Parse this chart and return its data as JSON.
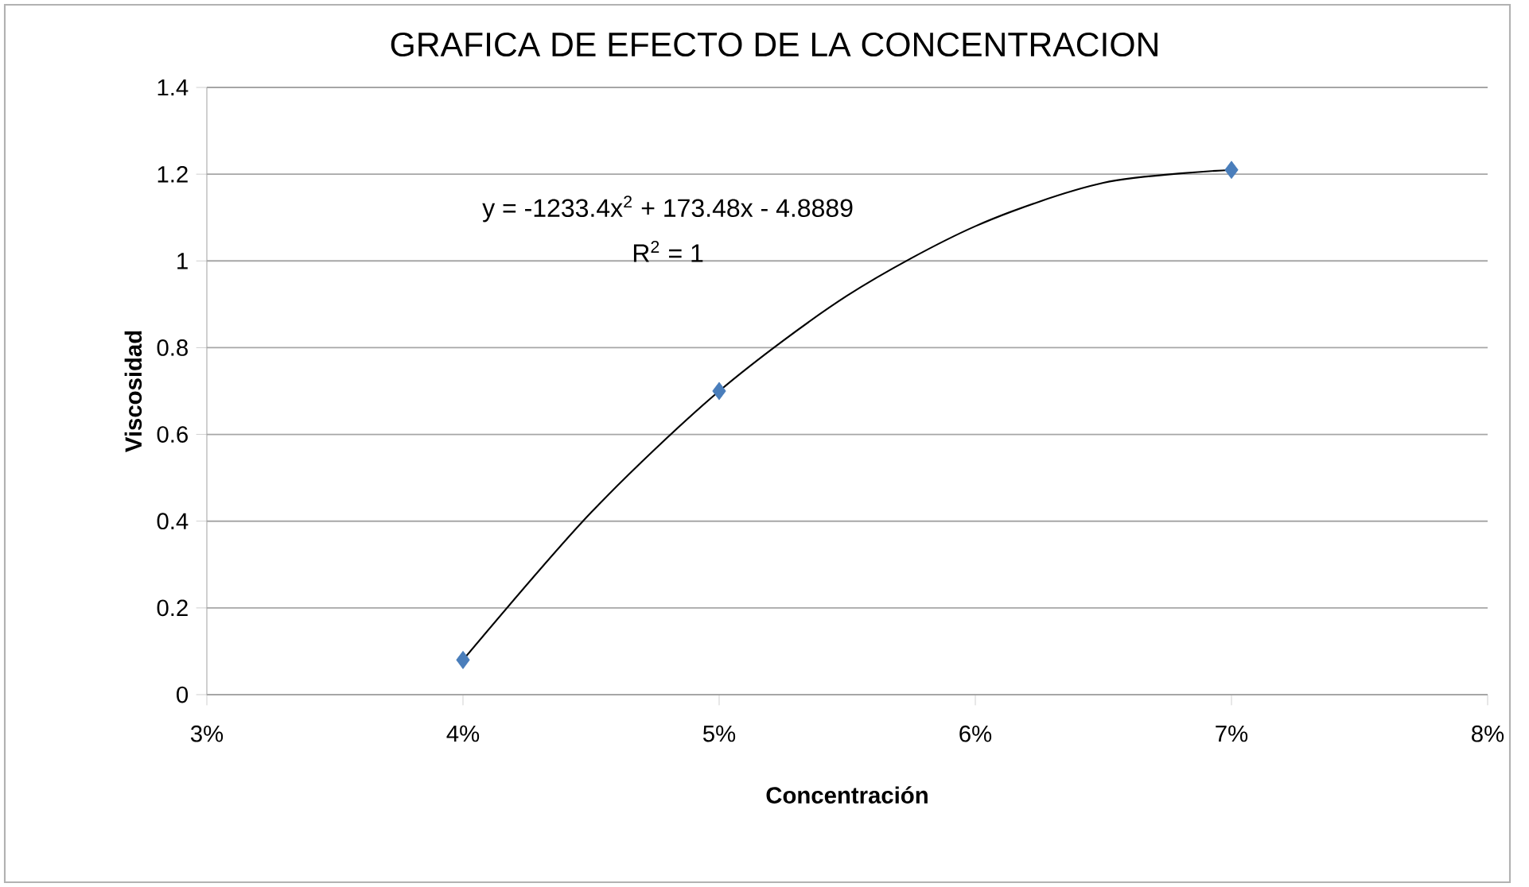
{
  "chart_data": {
    "type": "scatter",
    "title": "GRAFICA  DE EFECTO DE LA CONCENTRACION",
    "xlabel": "Concentración",
    "ylabel": "Viscosidad",
    "series": [
      {
        "color": "#4a7ebb",
        "marker": "diamond",
        "x": [
          4,
          5,
          7
        ],
        "values": [
          0.08,
          0.7,
          1.21
        ]
      },
      {
        "type": "line",
        "color": "#000000",
        "marker": "none",
        "line_style": "solid",
        "x": [
          4,
          4.5,
          5,
          5.5,
          6,
          6.5,
          7
        ],
        "values": [
          0.08,
          0.42,
          0.7,
          0.92,
          1.08,
          1.18,
          1.21
        ]
      }
    ],
    "annotations": [
      "y = -1233.4x$^{2}$ + 173.48x - 4.8889",
      "R$^{2}$ = 1"
    ],
    "xlim": [
      3,
      8
    ],
    "xticks": [
      {
        "value": 3,
        "label": "3%"
      },
      {
        "value": 4,
        "label": "4%"
      },
      {
        "value": 5,
        "label": "5%"
      },
      {
        "value": 6,
        "label": "6%"
      },
      {
        "value": 7,
        "label": "7%"
      },
      {
        "value": 8,
        "label": "8%"
      }
    ],
    "ylim": [
      0,
      1.4
    ],
    "yticks": [
      0,
      0.2,
      0.4,
      0.6,
      0.8,
      1,
      1.2,
      1.4
    ],
    "grid": "y"
  }
}
